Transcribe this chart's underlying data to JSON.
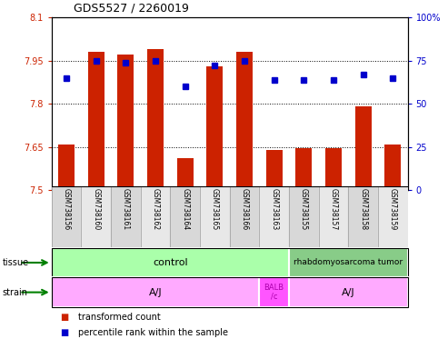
{
  "title": "GDS5527 / 2260019",
  "samples": [
    "GSM738156",
    "GSM738160",
    "GSM738161",
    "GSM738162",
    "GSM738164",
    "GSM738165",
    "GSM738166",
    "GSM738163",
    "GSM738155",
    "GSM738157",
    "GSM738158",
    "GSM738159"
  ],
  "bar_values": [
    7.66,
    7.98,
    7.97,
    7.99,
    7.61,
    7.93,
    7.98,
    7.64,
    7.645,
    7.645,
    7.79,
    7.66
  ],
  "dot_values": [
    65,
    75,
    74,
    75,
    60,
    72,
    75,
    64,
    64,
    64,
    67,
    65
  ],
  "y_min": 7.5,
  "y_max": 8.1,
  "y_ticks": [
    7.5,
    7.65,
    7.8,
    7.95,
    8.1
  ],
  "y2_ticks": [
    0,
    25,
    50,
    75,
    100
  ],
  "bar_color": "#cc2200",
  "dot_color": "#0000cc",
  "tissue_control_color": "#aaffaa",
  "tissue_tumor_color": "#88cc88",
  "strain_color": "#ffaaff",
  "strain_balb_color": "#ff55ff",
  "tissue_control_label": "control",
  "tissue_tumor_label": "rhabdomyosarcoma tumor",
  "strain_aj_label": "A/J",
  "strain_balb_label": "BALB\n/c",
  "n_control": 8,
  "n_balb": 1,
  "legend_red": "transformed count",
  "legend_blue": "percentile rank within the sample"
}
